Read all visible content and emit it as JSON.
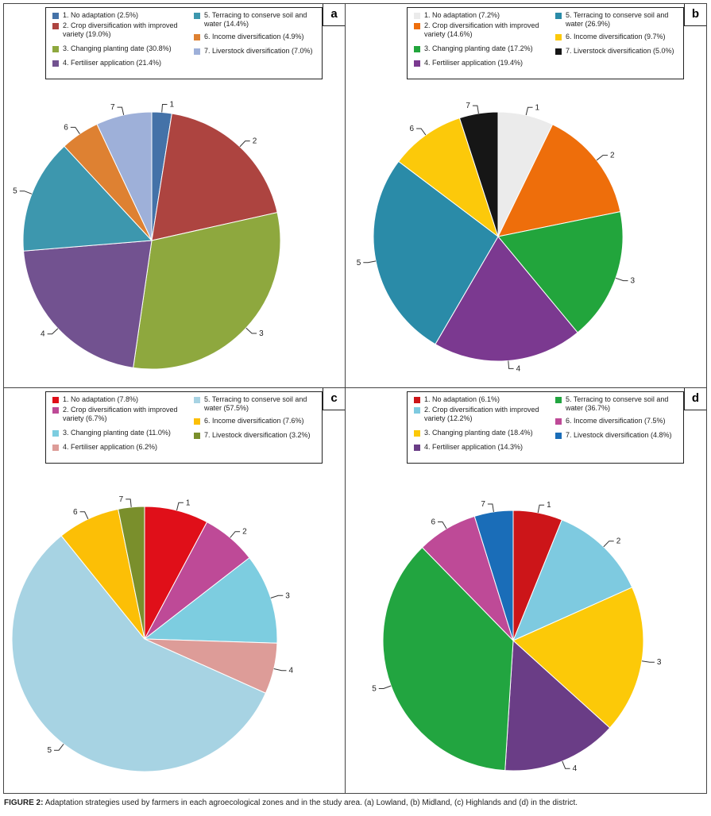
{
  "caption": {
    "label": "FIGURE 2:",
    "text": "Adaptation strategies used by farmers in each agroecological zones and in the study area. (a) Lowland, (b) Midland, (c) Highlands and (d) in the district."
  },
  "chart_data": [
    {
      "type": "pie",
      "panel": "a",
      "title": "Lowland",
      "slices": [
        {
          "id": "1",
          "label": "1. No adaptation (2.5%)",
          "value": 2.5,
          "color": "#4472a8"
        },
        {
          "id": "2",
          "label": "2. Crop diversification with improved variety (19.0%)",
          "value": 19.0,
          "color": "#ad4440"
        },
        {
          "id": "3",
          "label": "3. Changing planting date (30.8%)",
          "value": 30.8,
          "color": "#8ea83e"
        },
        {
          "id": "4",
          "label": "4. Fertiliser application  (21.4%)",
          "value": 21.4,
          "color": "#725290"
        },
        {
          "id": "5",
          "label": "5. Terracing to conserve soil and water (14.4%)",
          "value": 14.4,
          "color": "#3d97ae"
        },
        {
          "id": "6",
          "label": "6. Income diversification (4.9%)",
          "value": 4.9,
          "color": "#de8132"
        },
        {
          "id": "7",
          "label": "7. Liverstock diversification (7.0%)",
          "value": 7.0,
          "color": "#9eb0d9"
        }
      ]
    },
    {
      "type": "pie",
      "panel": "b",
      "title": "Midland",
      "slices": [
        {
          "id": "1",
          "label": "1. No adaptation (7.2%)",
          "value": 7.2,
          "color": "#ebebeb"
        },
        {
          "id": "2",
          "label": "2. Crop diversification with improved variety (14.6%)",
          "value": 14.6,
          "color": "#ee6e0b"
        },
        {
          "id": "3",
          "label": "3. Changing planting date (17.2%)",
          "value": 17.2,
          "color": "#22a53c"
        },
        {
          "id": "4",
          "label": "4. Fertiliser application (19.4%)",
          "value": 19.4,
          "color": "#7b3990"
        },
        {
          "id": "5",
          "label": "5. Terracing to conserve soil and water (26.9%)",
          "value": 26.9,
          "color": "#2a8ba8"
        },
        {
          "id": "6",
          "label": "6. Income diversification (9.7%)",
          "value": 9.7,
          "color": "#fcc90a"
        },
        {
          "id": "7",
          "label": "7. Liverstock diversification (5.0%)",
          "value": 5.0,
          "color": "#161616"
        }
      ]
    },
    {
      "type": "pie",
      "panel": "c",
      "title": "Highlands",
      "slices": [
        {
          "id": "1",
          "label": "1. No adaptation (7.8%)",
          "value": 7.8,
          "color": "#e00f19"
        },
        {
          "id": "2",
          "label": "2. Crop diversification with improved variety (6.7%)",
          "value": 6.7,
          "color": "#be4a97"
        },
        {
          "id": "3",
          "label": "3. Changing planting date (11.0%)",
          "value": 11.0,
          "color": "#7dcde0"
        },
        {
          "id": "4",
          "label": "4. Fertiliser application  (6.2%)",
          "value": 6.2,
          "color": "#dd9c98"
        },
        {
          "id": "5",
          "label": "5. Terracing to conserve soil and water (57.5%)",
          "value": 57.5,
          "color": "#a7d3e3"
        },
        {
          "id": "6",
          "label": "6. Income diversification (7.6%)",
          "value": 7.6,
          "color": "#fcbf06"
        },
        {
          "id": "7",
          "label": "7. Livestock diversification (3.2%)",
          "value": 3.2,
          "color": "#7a8f2c"
        }
      ]
    },
    {
      "type": "pie",
      "panel": "d",
      "title": "District",
      "slices": [
        {
          "id": "1",
          "label": "1. No adaptation (6.1%)",
          "value": 6.1,
          "color": "#cc1519"
        },
        {
          "id": "2",
          "label": "2. Crop diversification with improved variety (12.2%)",
          "value": 12.2,
          "color": "#7ecae0"
        },
        {
          "id": "3",
          "label": "3. Changing planting date (18.4%)",
          "value": 18.4,
          "color": "#fcc908"
        },
        {
          "id": "4",
          "label": "4. Fertiliser application  (14.3%)",
          "value": 14.3,
          "color": "#6a3d86"
        },
        {
          "id": "5",
          "label": "5. Terracing to conserve soil and water (36.7%)",
          "value": 36.7,
          "color": "#22a540"
        },
        {
          "id": "6",
          "label": "6. Income diversification (7.5%)",
          "value": 7.5,
          "color": "#be4a97"
        },
        {
          "id": "7",
          "label": "7. Livestock diversification (4.8%)",
          "value": 4.8,
          "color": "#1a6db8"
        }
      ]
    }
  ]
}
